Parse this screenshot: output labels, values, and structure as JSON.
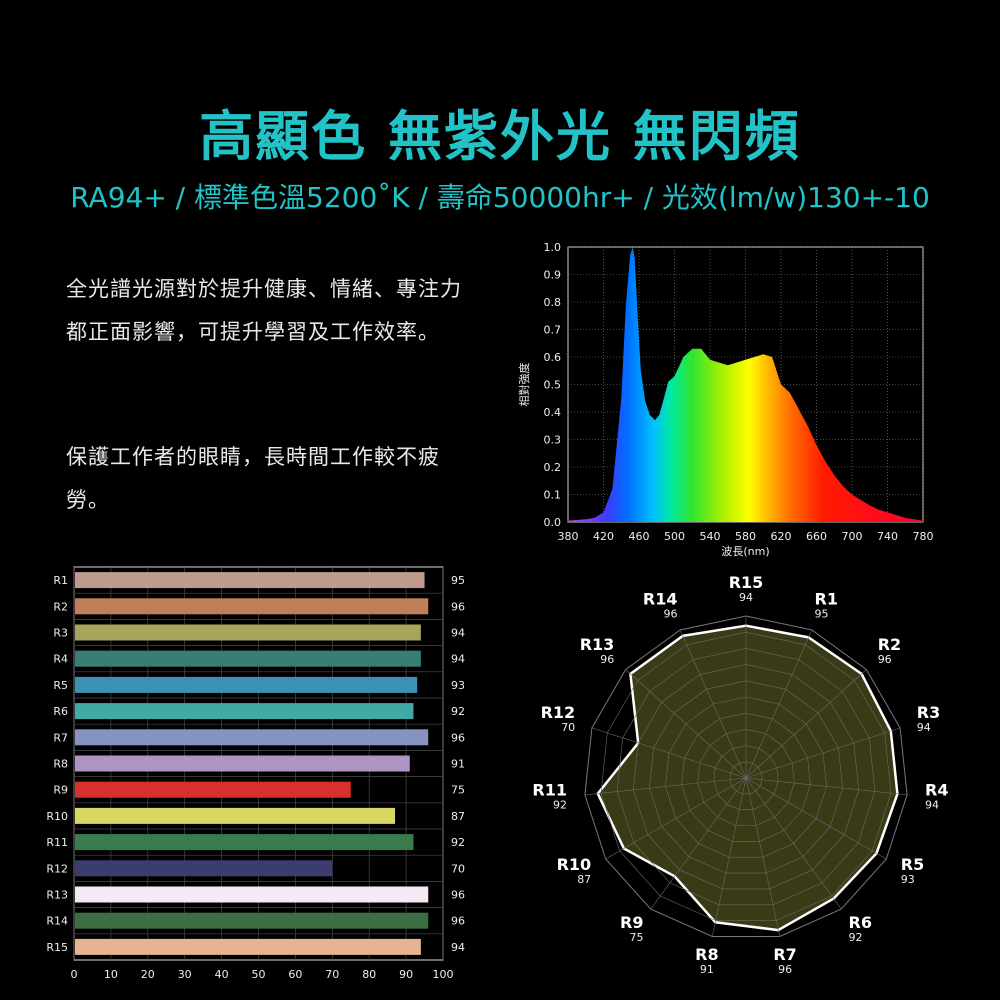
{
  "header": {
    "title": "高顯色 無紫外光 無閃頻",
    "subtitle": "RA94+ / 標準色溫5200˚K / 壽命50000hr+ / 光效(lm/w)130+-10"
  },
  "body": {
    "paragraph1": "全光譜光源對於提升健康、情緒、專注力都正面影響，可提升學習及工作效率。",
    "paragraph2": "保護工作者的眼睛，長時間工作較不疲勞。"
  },
  "chart_data": [
    {
      "type": "area",
      "ylabel": "相對強度",
      "xlabel": "波長(nm)",
      "xlim": [
        380,
        780
      ],
      "ylim": [
        0,
        1.0
      ],
      "x_ticks": [
        380,
        420,
        460,
        500,
        540,
        580,
        620,
        660,
        700,
        740,
        780
      ],
      "y_ticks": [
        0.0,
        0.1,
        0.2,
        0.3,
        0.4,
        0.5,
        0.6,
        0.7,
        0.8,
        0.9,
        1.0
      ],
      "grid": true,
      "x": [
        380,
        400,
        410,
        420,
        430,
        440,
        445,
        450,
        453,
        455,
        458,
        462,
        467,
        472,
        478,
        483,
        488,
        493,
        500,
        510,
        520,
        530,
        540,
        550,
        560,
        570,
        580,
        590,
        600,
        610,
        620,
        630,
        635,
        640,
        650,
        660,
        670,
        680,
        690,
        700,
        710,
        720,
        730,
        740,
        750,
        760,
        770,
        780
      ],
      "values": [
        0.005,
        0.01,
        0.015,
        0.035,
        0.12,
        0.45,
        0.78,
        0.97,
        1.0,
        0.96,
        0.78,
        0.55,
        0.44,
        0.39,
        0.37,
        0.39,
        0.45,
        0.51,
        0.53,
        0.6,
        0.63,
        0.63,
        0.59,
        0.58,
        0.57,
        0.58,
        0.59,
        0.6,
        0.61,
        0.6,
        0.5,
        0.47,
        0.44,
        0.41,
        0.35,
        0.28,
        0.22,
        0.17,
        0.13,
        0.1,
        0.08,
        0.06,
        0.045,
        0.035,
        0.025,
        0.015,
        0.01,
        0.005
      ]
    },
    {
      "type": "bar",
      "orientation": "horizontal",
      "categories": [
        "R1",
        "R2",
        "R3",
        "R4",
        "R5",
        "R6",
        "R7",
        "R8",
        "R9",
        "R10",
        "R11",
        "R12",
        "R13",
        "R14",
        "R15"
      ],
      "values": [
        95,
        96,
        94,
        94,
        93,
        92,
        96,
        91,
        75,
        87,
        92,
        70,
        96,
        96,
        94
      ],
      "colors": [
        "#c09b8d",
        "#c17f57",
        "#a7a45c",
        "#387e75",
        "#3b90b6",
        "#41aaa5",
        "#8692c2",
        "#ae93c3",
        "#d8302c",
        "#d9d864",
        "#3b7c4e",
        "#3b3d6e",
        "#f5e9f3",
        "#3b6e40",
        "#e6b493"
      ],
      "xlim": [
        0,
        100
      ],
      "x_ticks": [
        0,
        10,
        20,
        30,
        40,
        50,
        60,
        70,
        80,
        90,
        100
      ],
      "grid": true
    },
    {
      "type": "radar",
      "categories": [
        "R15",
        "R1",
        "R2",
        "R3",
        "R4",
        "R5",
        "R6",
        "R7",
        "R8",
        "R9",
        "R10",
        "R11",
        "R12",
        "R13",
        "R14"
      ],
      "values": [
        94,
        95,
        96,
        94,
        94,
        93,
        92,
        96,
        91,
        75,
        87,
        92,
        70,
        96,
        96
      ],
      "rlim": [
        0,
        100
      ],
      "fill_color": "#3a3a17",
      "line_color": "#ffffff"
    }
  ]
}
